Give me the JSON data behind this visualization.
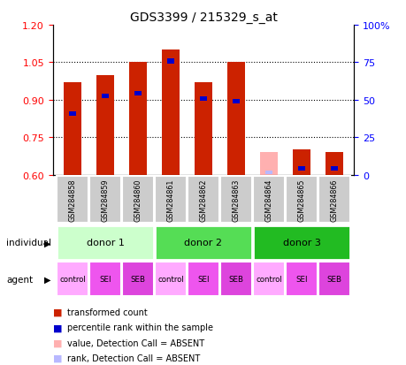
{
  "title": "GDS3399 / 215329_s_at",
  "samples": [
    "GSM284858",
    "GSM284859",
    "GSM284860",
    "GSM284861",
    "GSM284862",
    "GSM284863",
    "GSM284864",
    "GSM284865",
    "GSM284866"
  ],
  "transformed_count": [
    0.97,
    1.0,
    1.05,
    1.1,
    0.97,
    1.05,
    0.0,
    0.7,
    0.69
  ],
  "percentile_rank_pos": [
    0.845,
    0.915,
    0.925,
    1.055,
    0.905,
    0.895,
    0.0,
    0.625,
    0.625
  ],
  "absent_value": [
    0.0,
    0.0,
    0.0,
    0.0,
    0.0,
    0.0,
    0.69,
    0.0,
    0.0
  ],
  "absent_flags": [
    false,
    false,
    false,
    false,
    false,
    false,
    true,
    false,
    false
  ],
  "donors": [
    {
      "label": "donor 1",
      "start": 0,
      "end": 3,
      "color": "#ccffcc"
    },
    {
      "label": "donor 2",
      "start": 3,
      "end": 6,
      "color": "#44cc44"
    },
    {
      "label": "donor 3",
      "start": 6,
      "end": 9,
      "color": "#22bb22"
    }
  ],
  "agents": [
    "control",
    "SEI",
    "SEB",
    "control",
    "SEI",
    "SEB",
    "control",
    "SEI",
    "SEB"
  ],
  "agent_colors": [
    "#ffaaff",
    "#ee66ee",
    "#dd44dd",
    "#ffaaff",
    "#ee66ee",
    "#dd44dd",
    "#ffaaff",
    "#ee66ee",
    "#dd44dd"
  ],
  "ylim_left": [
    0.6,
    1.2
  ],
  "ylim_right": [
    0,
    100
  ],
  "yticks_left": [
    0.6,
    0.75,
    0.9,
    1.05,
    1.2
  ],
  "yticks_right": [
    0,
    25,
    50,
    75,
    100
  ],
  "bar_color_red": "#cc2200",
  "bar_color_blue": "#0000cc",
  "absent_bar_color": "#ffb0b0",
  "absent_rank_color": "#b8b8ff",
  "bar_width": 0.55
}
